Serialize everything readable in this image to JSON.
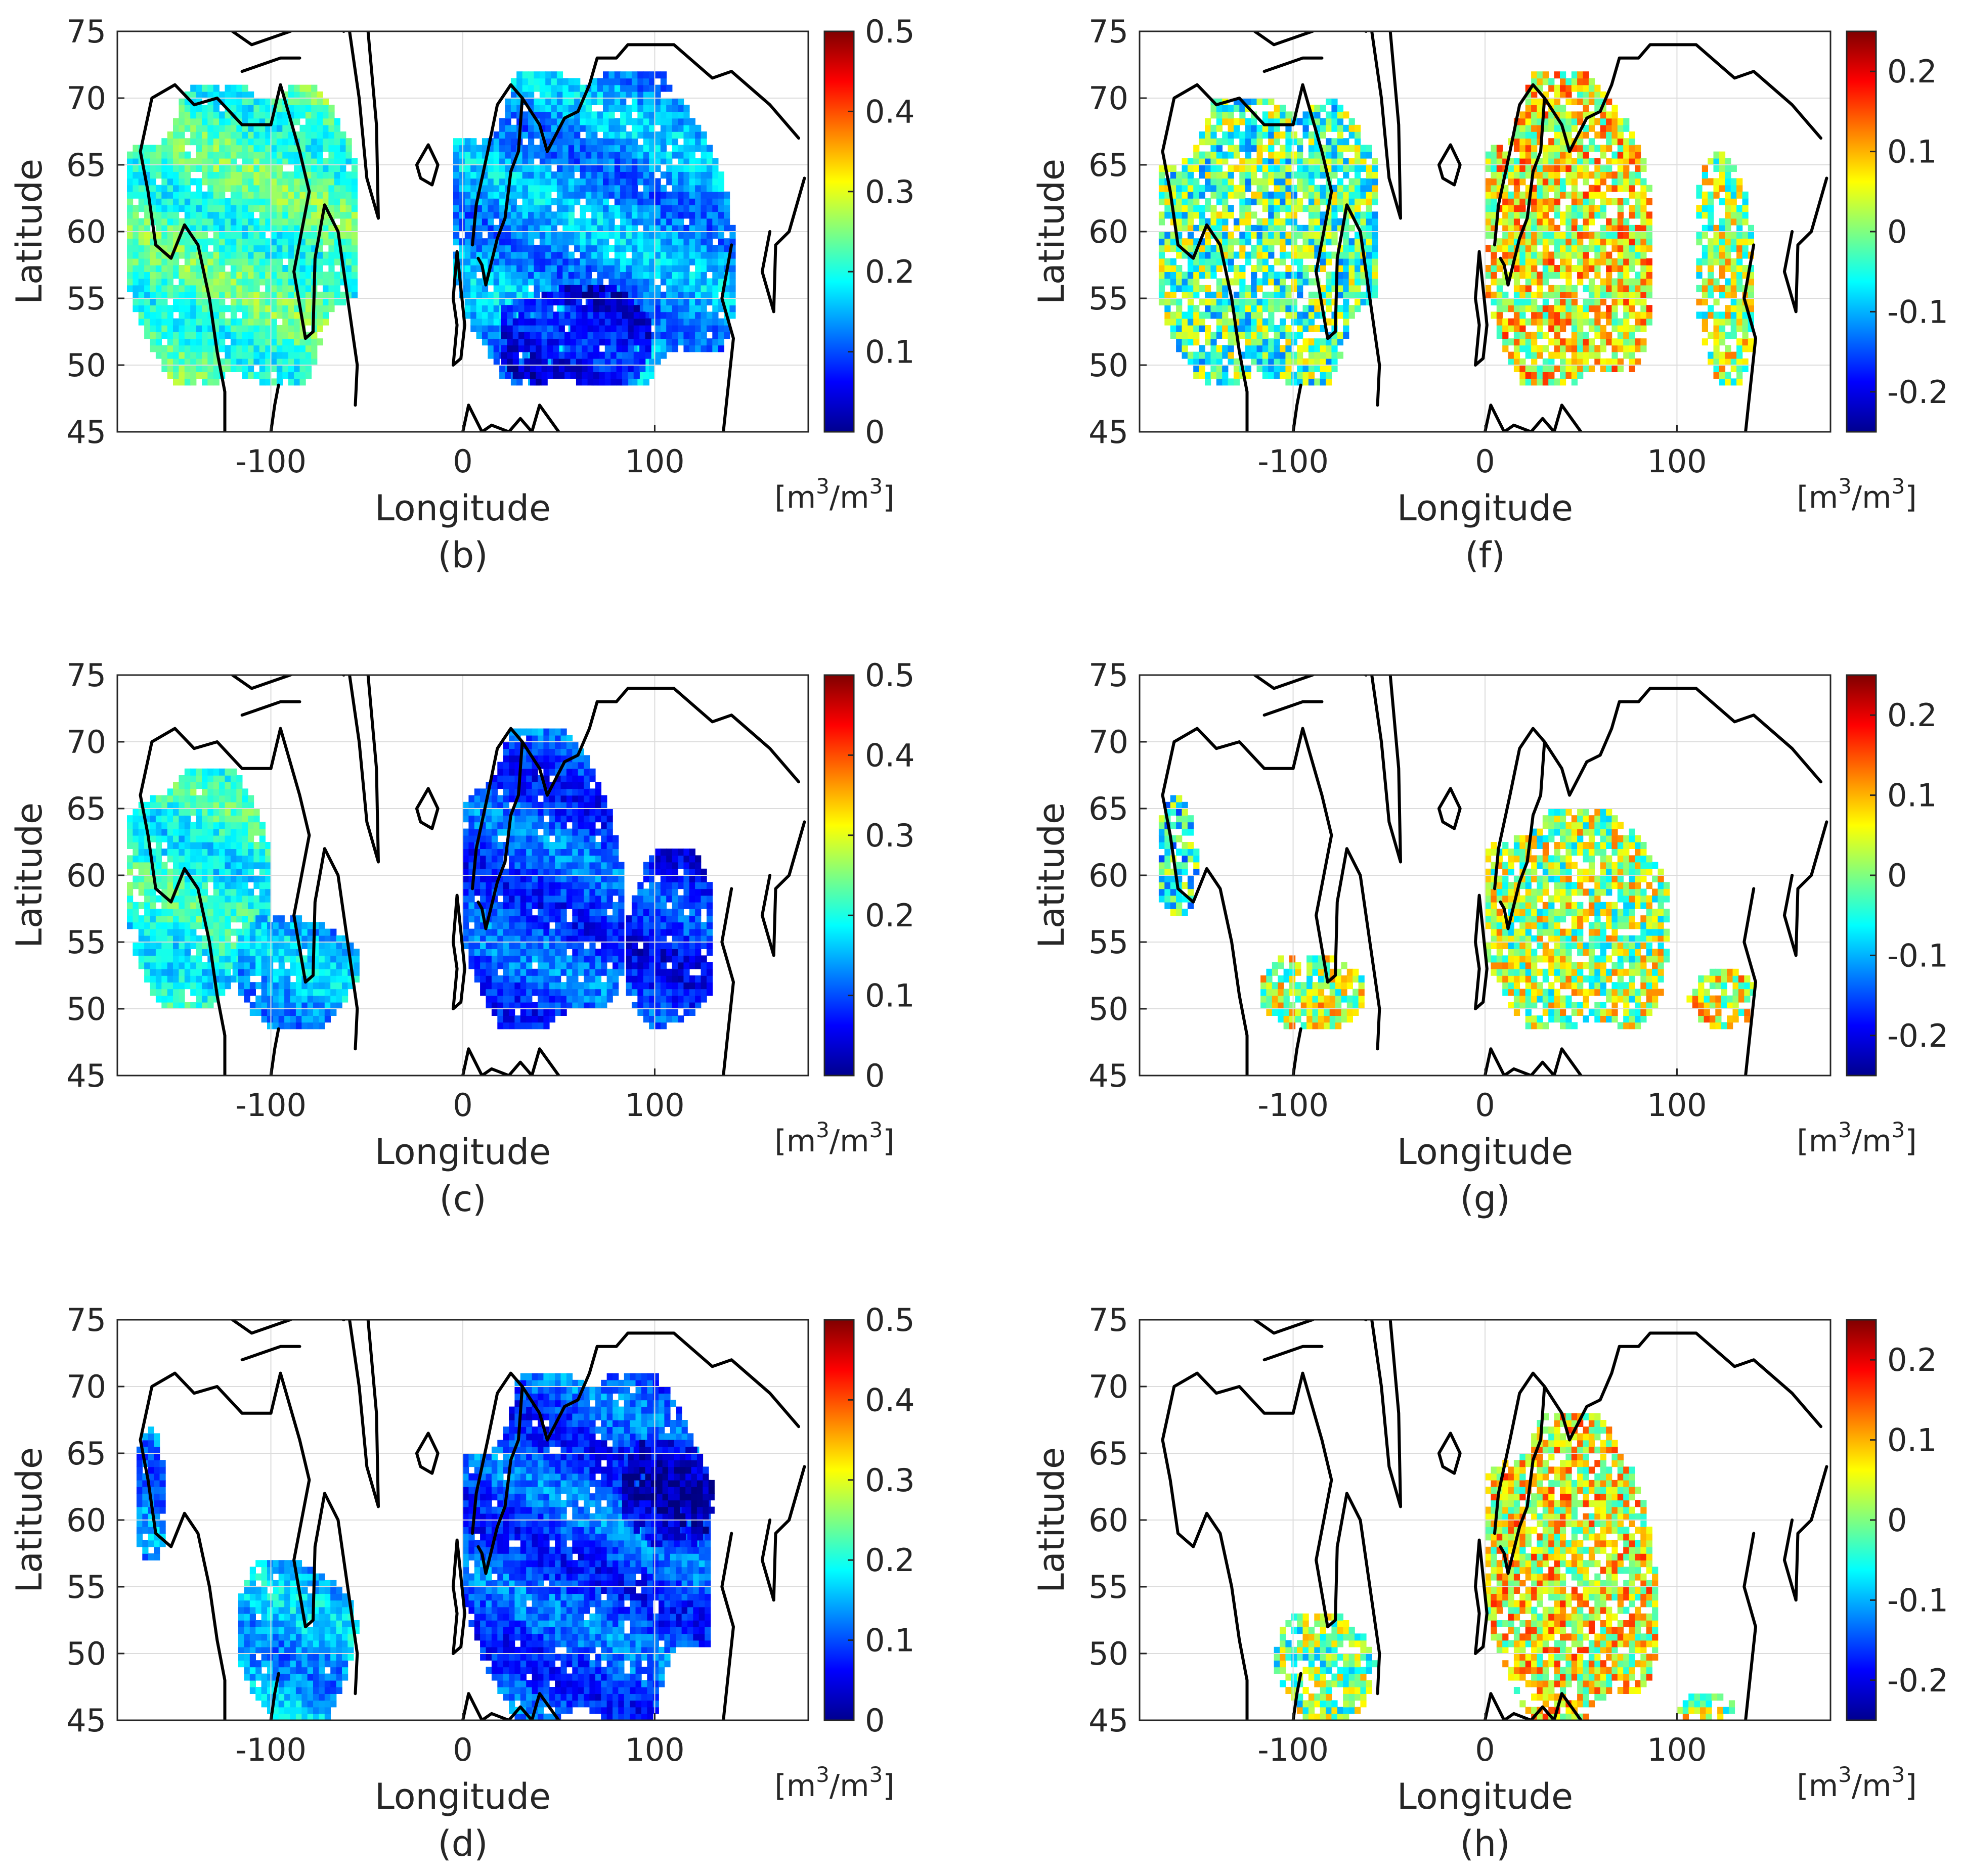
{
  "figure": {
    "description_colorbar_unit": "[m³/m³]",
    "panels_order": [
      "b",
      "f",
      "c",
      "g",
      "d",
      "h"
    ]
  },
  "chart_data": [
    {
      "id": "b",
      "type": "heatmap",
      "caption": "(b)",
      "xlabel": "Longitude",
      "ylabel": "Latitude",
      "xlim": [
        -180,
        180
      ],
      "ylim": [
        45,
        75
      ],
      "xticks": [
        -100,
        0,
        100
      ],
      "xtick_labels": [
        "-100",
        "0",
        "100"
      ],
      "yticks": [
        45,
        50,
        55,
        60,
        65,
        70,
        75
      ],
      "ytick_labels": [
        "45",
        "50",
        "55",
        "60",
        "65",
        "70",
        "75"
      ],
      "grid": true,
      "colorbar": {
        "clim": [
          0,
          0.5
        ],
        "ticks": [
          0,
          0.1,
          0.2,
          0.3,
          0.4,
          0.5
        ],
        "tick_labels": [
          "0",
          "0.1",
          "0.2",
          "0.3",
          "0.4",
          "0.5"
        ],
        "unit_base": "m",
        "unit_exp": "3"
      },
      "regions": [
        {
          "lon": [
            -175,
            -55
          ],
          "lat": [
            48.5,
            71
          ],
          "level": 0.22
        },
        {
          "lon": [
            -5,
            145
          ],
          "lat": [
            48.5,
            72
          ],
          "level": 0.14
        },
        {
          "lon": [
            20,
            100
          ],
          "lat": [
            48.5,
            56
          ],
          "level": 0.06
        }
      ]
    },
    {
      "id": "f",
      "type": "heatmap",
      "caption": "(f)",
      "xlabel": "Longitude",
      "ylabel": "Latitude",
      "xlim": [
        -180,
        180
      ],
      "ylim": [
        45,
        75
      ],
      "xticks": [
        -100,
        0,
        100
      ],
      "xtick_labels": [
        "-100",
        "0",
        "100"
      ],
      "yticks": [
        45,
        50,
        55,
        60,
        65,
        70,
        75
      ],
      "ytick_labels": [
        "45",
        "50",
        "55",
        "60",
        "65",
        "70",
        "75"
      ],
      "grid": true,
      "colorbar": {
        "clim": [
          -0.25,
          0.25
        ],
        "ticks": [
          -0.2,
          -0.1,
          0,
          0.1,
          0.2
        ],
        "tick_labels": [
          "-0.2",
          "-0.1",
          "0",
          "0.1",
          "0.2"
        ],
        "unit_base": "m",
        "unit_exp": "3"
      },
      "regions": [
        {
          "lon": [
            -170,
            -55
          ],
          "lat": [
            48.5,
            70
          ],
          "level": -0.02
        },
        {
          "lon": [
            0,
            90
          ],
          "lat": [
            48.5,
            72
          ],
          "level": 0.06
        },
        {
          "lon": [
            110,
            140
          ],
          "lat": [
            48.5,
            66
          ],
          "level": 0.02
        }
      ]
    },
    {
      "id": "c",
      "type": "heatmap",
      "caption": "(c)",
      "xlabel": "Longitude",
      "ylabel": "Latitude",
      "xlim": [
        -180,
        180
      ],
      "ylim": [
        45,
        75
      ],
      "xticks": [
        -100,
        0,
        100
      ],
      "xtick_labels": [
        "-100",
        "0",
        "100"
      ],
      "yticks": [
        45,
        50,
        55,
        60,
        65,
        70,
        75
      ],
      "ytick_labels": [
        "45",
        "50",
        "55",
        "60",
        "65",
        "70",
        "75"
      ],
      "grid": true,
      "colorbar": {
        "clim": [
          0,
          0.5
        ],
        "ticks": [
          0,
          0.1,
          0.2,
          0.3,
          0.4,
          0.5
        ],
        "tick_labels": [
          "0",
          "0.1",
          "0.2",
          "0.3",
          "0.4",
          "0.5"
        ],
        "unit_base": "m",
        "unit_exp": "3"
      },
      "regions": [
        {
          "lon": [
            -175,
            -100
          ],
          "lat": [
            50,
            68
          ],
          "level": 0.2
        },
        {
          "lon": [
            -120,
            -55
          ],
          "lat": [
            48.5,
            57
          ],
          "level": 0.15
        },
        {
          "lon": [
            0,
            85
          ],
          "lat": [
            48.5,
            71
          ],
          "level": 0.1
        },
        {
          "lon": [
            85,
            130
          ],
          "lat": [
            48.5,
            62
          ],
          "level": 0.08
        }
      ]
    },
    {
      "id": "g",
      "type": "heatmap",
      "caption": "(g)",
      "xlabel": "Longitude",
      "ylabel": "Latitude",
      "xlim": [
        -180,
        180
      ],
      "ylim": [
        45,
        75
      ],
      "xticks": [
        -100,
        0,
        100
      ],
      "xtick_labels": [
        "-100",
        "0",
        "100"
      ],
      "yticks": [
        45,
        50,
        55,
        60,
        65,
        70,
        75
      ],
      "ytick_labels": [
        "45",
        "50",
        "55",
        "60",
        "65",
        "70",
        "75"
      ],
      "grid": true,
      "colorbar": {
        "clim": [
          -0.25,
          0.25
        ],
        "ticks": [
          -0.2,
          -0.1,
          0,
          0.1,
          0.2
        ],
        "tick_labels": [
          "-0.2",
          "-0.1",
          "0",
          "0.1",
          "0.2"
        ],
        "unit_base": "m",
        "unit_exp": "3"
      },
      "regions": [
        {
          "lon": [
            -170,
            -150
          ],
          "lat": [
            57,
            66
          ],
          "level": -0.05
        },
        {
          "lon": [
            -120,
            -60
          ],
          "lat": [
            48.5,
            54
          ],
          "level": 0.03
        },
        {
          "lon": [
            0,
            100
          ],
          "lat": [
            48.5,
            65
          ],
          "level": 0.02
        },
        {
          "lon": [
            105,
            140
          ],
          "lat": [
            48.5,
            53
          ],
          "level": 0.05
        }
      ]
    },
    {
      "id": "d",
      "type": "heatmap",
      "caption": "(d)",
      "xlabel": "Longitude",
      "ylabel": "Latitude",
      "xlim": [
        -180,
        180
      ],
      "ylim": [
        45,
        75
      ],
      "xticks": [
        -100,
        0,
        100
      ],
      "xtick_labels": [
        "-100",
        "0",
        "100"
      ],
      "yticks": [
        45,
        50,
        55,
        60,
        65,
        70,
        75
      ],
      "ytick_labels": [
        "45",
        "50",
        "55",
        "60",
        "65",
        "70",
        "75"
      ],
      "grid": true,
      "colorbar": {
        "clim": [
          0,
          0.5
        ],
        "ticks": [
          0,
          0.1,
          0.2,
          0.3,
          0.4,
          0.5
        ],
        "tick_labels": [
          "0",
          "0.1",
          "0.2",
          "0.3",
          "0.4",
          "0.5"
        ],
        "unit_base": "m",
        "unit_exp": "3"
      },
      "regions": [
        {
          "lon": [
            -170,
            -155
          ],
          "lat": [
            57,
            67
          ],
          "level": 0.12
        },
        {
          "lon": [
            -120,
            -55
          ],
          "lat": [
            45,
            57
          ],
          "level": 0.15
        },
        {
          "lon": [
            0,
            130
          ],
          "lat": [
            45,
            71
          ],
          "level": 0.1
        },
        {
          "lon": [
            80,
            130
          ],
          "lat": [
            58,
            66
          ],
          "level": 0.04
        }
      ]
    },
    {
      "id": "h",
      "type": "heatmap",
      "caption": "(h)",
      "xlabel": "Longitude",
      "ylabel": "Latitude",
      "xlim": [
        -180,
        180
      ],
      "ylim": [
        45,
        75
      ],
      "xticks": [
        -100,
        0,
        100
      ],
      "xtick_labels": [
        "-100",
        "0",
        "100"
      ],
      "yticks": [
        45,
        50,
        55,
        60,
        65,
        70,
        75
      ],
      "ytick_labels": [
        "45",
        "50",
        "55",
        "60",
        "65",
        "70",
        "75"
      ],
      "grid": true,
      "colorbar": {
        "clim": [
          -0.25,
          0.25
        ],
        "ticks": [
          -0.2,
          -0.1,
          0,
          0.1,
          0.2
        ],
        "tick_labels": [
          "-0.2",
          "-0.1",
          "0",
          "0.1",
          "0.2"
        ],
        "unit_base": "m",
        "unit_exp": "3"
      },
      "regions": [
        {
          "lon": [
            -110,
            -55
          ],
          "lat": [
            45,
            53
          ],
          "level": 0.0
        },
        {
          "lon": [
            0,
            90
          ],
          "lat": [
            45,
            68
          ],
          "level": 0.06
        },
        {
          "lon": [
            100,
            130
          ],
          "lat": [
            45,
            47
          ],
          "level": 0.03
        }
      ]
    }
  ]
}
